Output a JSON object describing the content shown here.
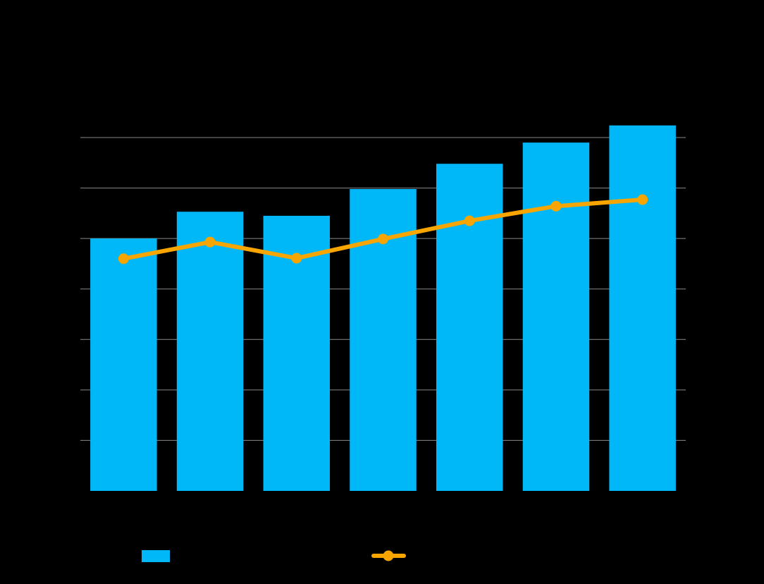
{
  "chart_data": {
    "type": "bar",
    "categories": [
      null,
      null,
      null,
      null,
      null,
      null,
      null
    ],
    "series": [
      {
        "type": "bar",
        "color": "#00b8f8",
        "values": [
          5.0,
          5.53,
          5.45,
          5.98,
          6.48,
          6.9,
          7.24
        ]
      },
      {
        "type": "line",
        "color": "#f8a500",
        "values": [
          4.6,
          4.93,
          4.61,
          4.99,
          5.35,
          5.64,
          5.77
        ]
      }
    ],
    "ylim": [
      0,
      7
    ],
    "yticks": [
      1,
      2,
      3,
      4,
      5,
      6,
      7
    ],
    "grid": true
  }
}
